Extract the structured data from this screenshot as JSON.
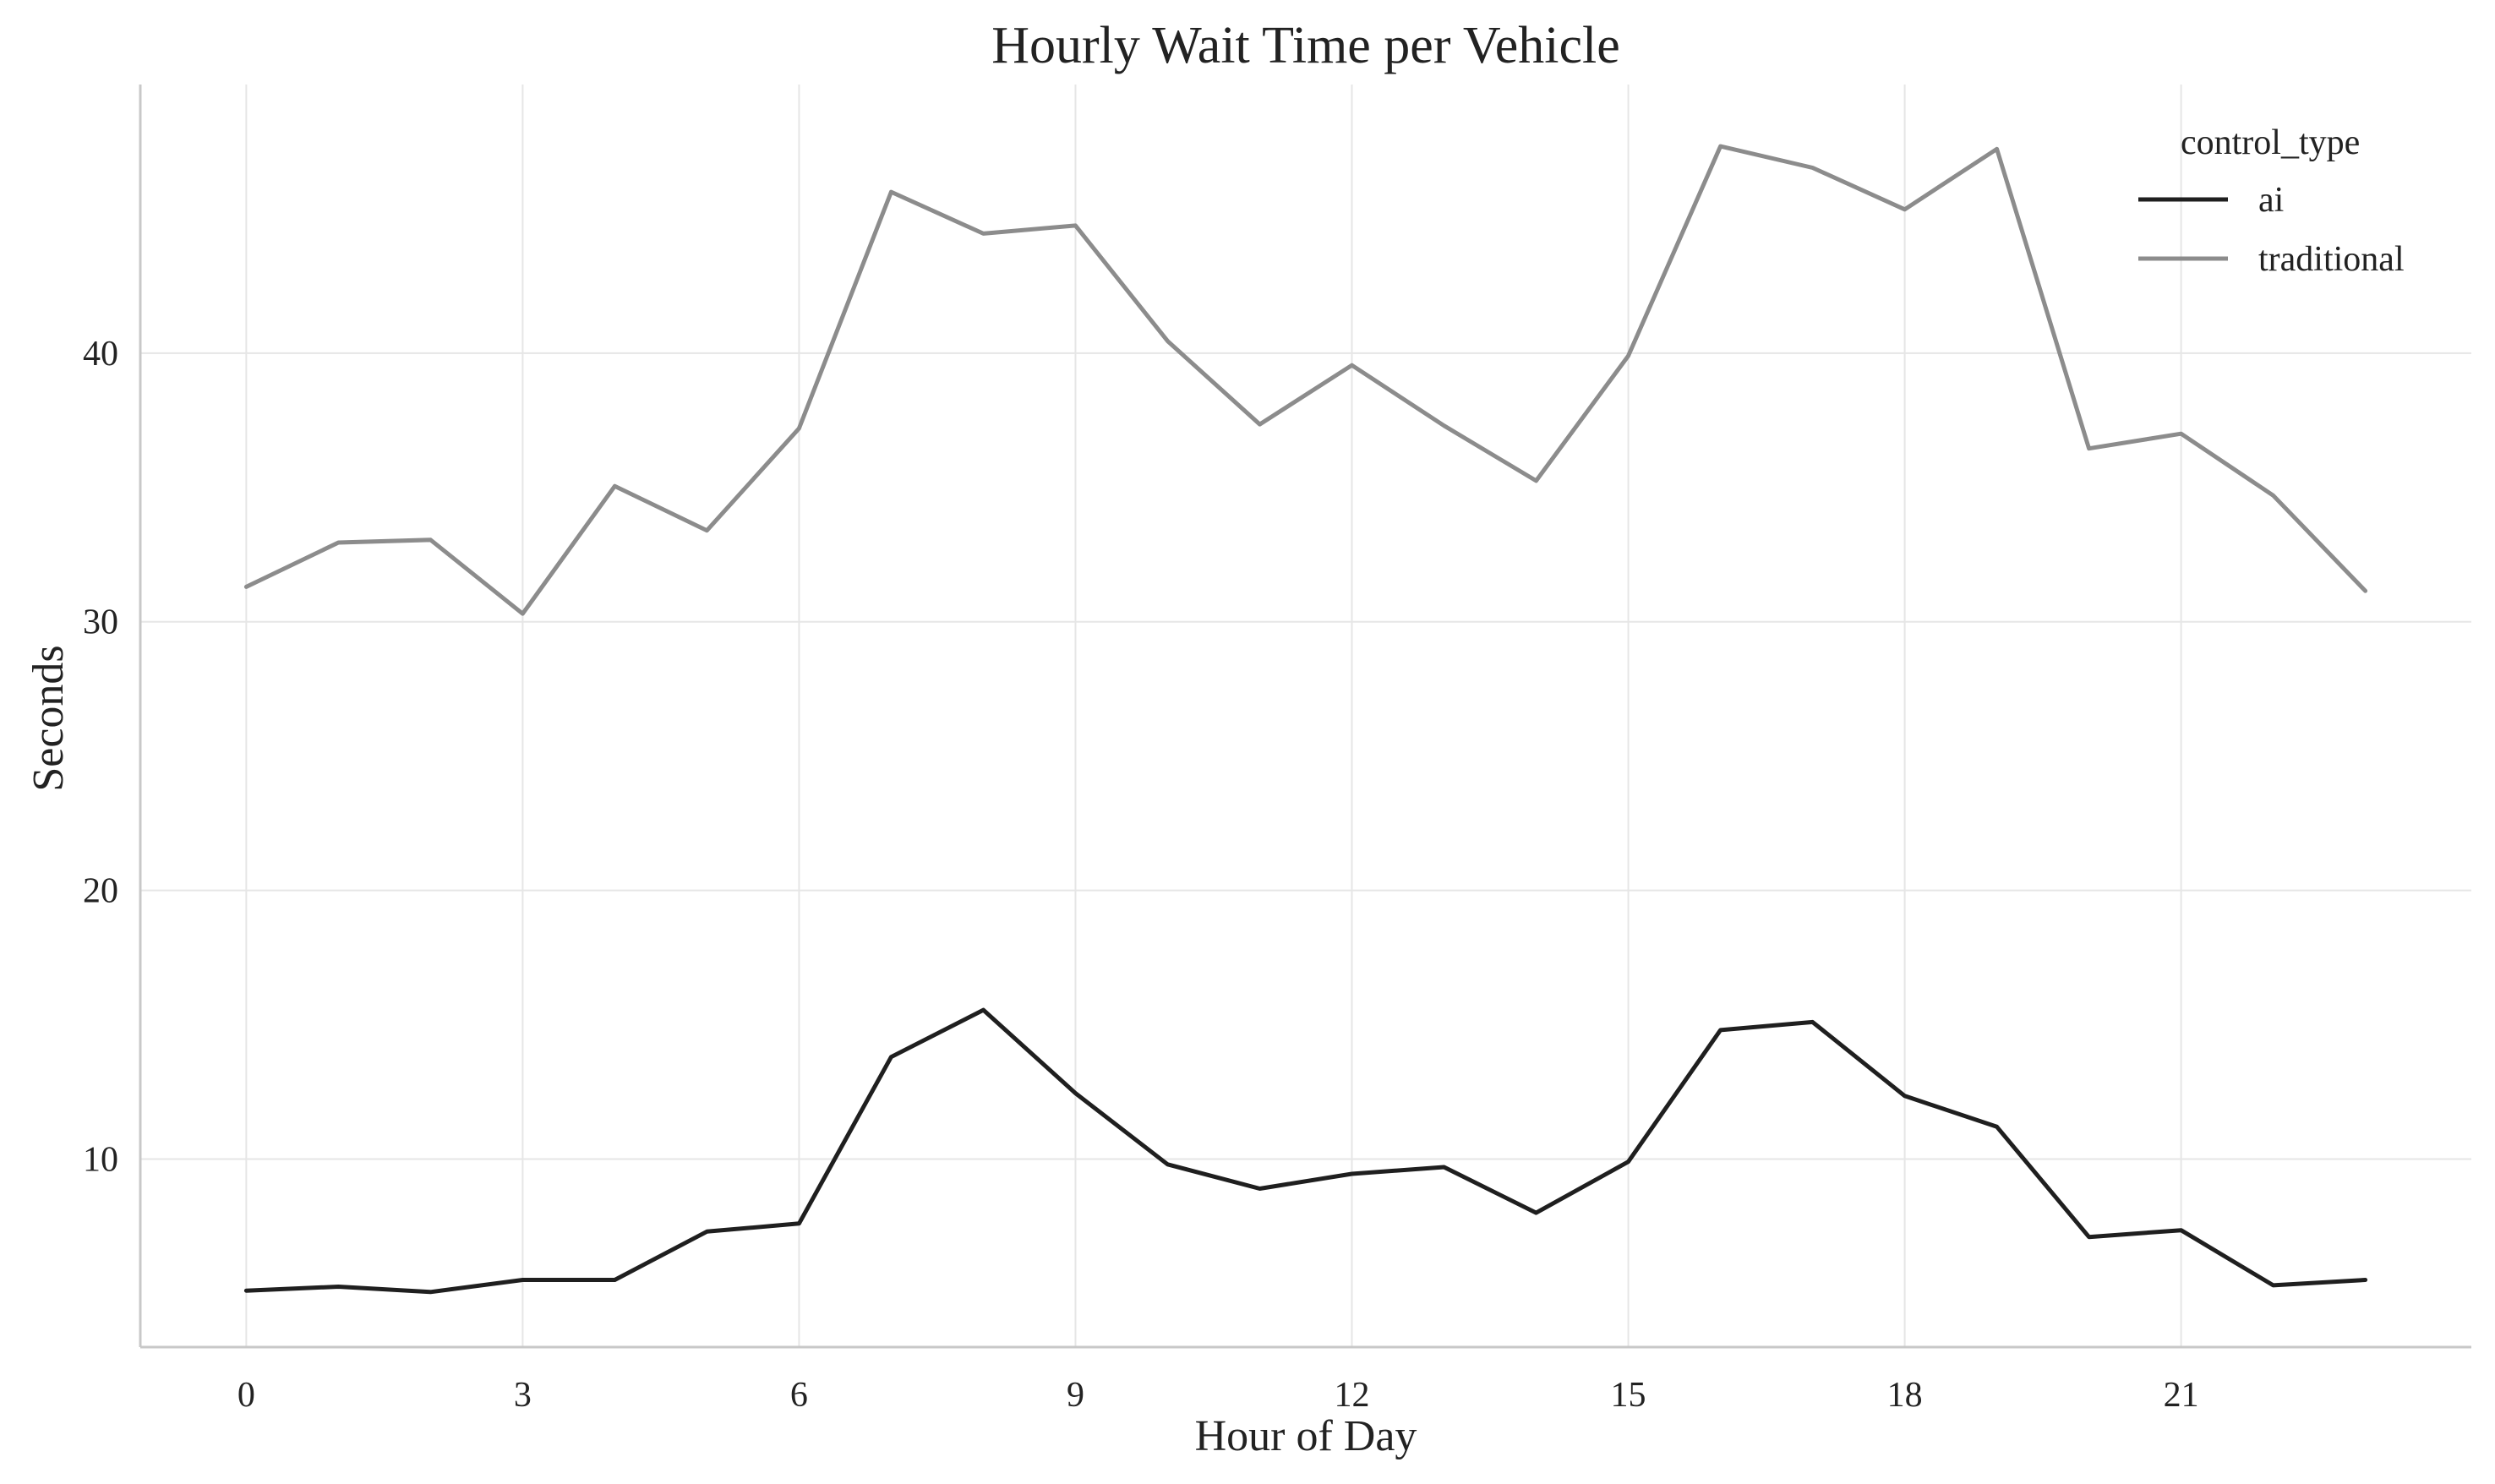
{
  "chart_data": {
    "type": "line",
    "title": "Hourly Wait Time per Vehicle",
    "xlabel": "Hour of Day",
    "ylabel": "Seconds",
    "x": [
      0,
      1,
      2,
      3,
      4,
      5,
      6,
      7,
      8,
      9,
      10,
      11,
      12,
      13,
      14,
      15,
      16,
      17,
      18,
      19,
      20,
      21,
      22,
      23
    ],
    "xticks": [
      0,
      3,
      6,
      9,
      12,
      15,
      18,
      21
    ],
    "yticks": [
      10,
      20,
      30,
      40
    ],
    "xlim": [
      -1.15,
      24.15
    ],
    "ylim": [
      3,
      50
    ],
    "grid": true,
    "legend": {
      "title": "control_type",
      "placement": "top-right"
    },
    "series": [
      {
        "name": "ai",
        "color": "#1f1f1f",
        "values": [
          5.1,
          5.25,
          5.05,
          5.5,
          5.5,
          7.3,
          7.6,
          13.8,
          15.55,
          12.45,
          9.8,
          8.9,
          9.45,
          9.7,
          8.0,
          9.9,
          14.8,
          15.1,
          12.35,
          11.2,
          7.1,
          7.35,
          5.3,
          5.5
        ]
      },
      {
        "name": "traditional",
        "color": "#8c8c8c",
        "values": [
          31.3,
          32.95,
          33.05,
          30.3,
          35.05,
          33.4,
          37.2,
          46.0,
          44.45,
          44.75,
          40.45,
          37.35,
          39.55,
          37.3,
          35.25,
          39.9,
          47.7,
          46.9,
          45.35,
          47.6,
          36.45,
          37.0,
          34.7,
          31.15
        ]
      }
    ]
  }
}
